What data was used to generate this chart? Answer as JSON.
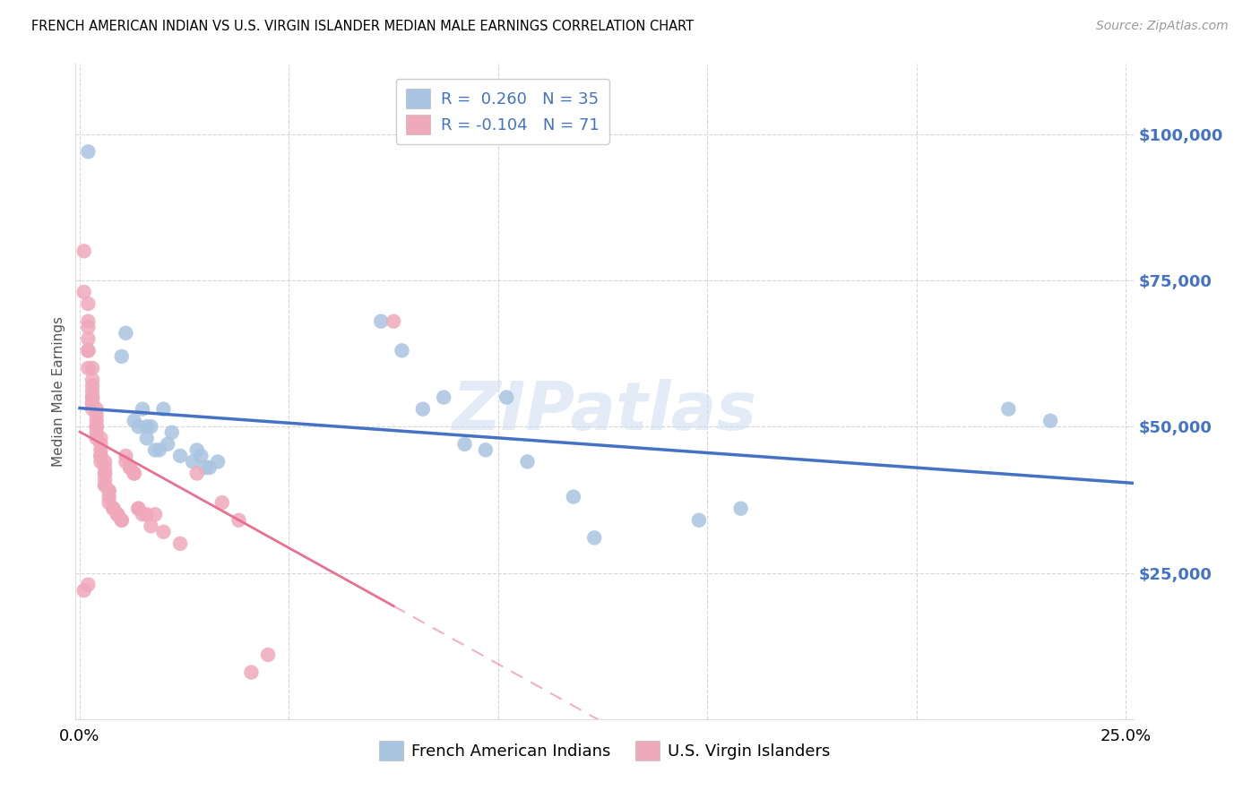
{
  "title": "FRENCH AMERICAN INDIAN VS U.S. VIRGIN ISLANDER MEDIAN MALE EARNINGS CORRELATION CHART",
  "source": "Source: ZipAtlas.com",
  "ylabel": "Median Male Earnings",
  "watermark": "ZIPatlas",
  "xlim": [
    -0.001,
    0.252
  ],
  "ylim": [
    0,
    112000
  ],
  "yticks": [
    25000,
    50000,
    75000,
    100000
  ],
  "xticks": [
    0.0,
    0.05,
    0.1,
    0.15,
    0.2,
    0.25
  ],
  "xtick_labels": [
    "0.0%",
    "",
    "",
    "",
    "",
    "25.0%"
  ],
  "ytick_labels": [
    "$25,000",
    "$50,000",
    "$75,000",
    "$100,000"
  ],
  "blue_dot_color": "#a8c4e0",
  "pink_dot_color": "#f0a8bb",
  "blue_line_color": "#4472c4",
  "pink_line_color": "#e87090",
  "legend_text_color": "#4472c4",
  "blue_scatter_x": [
    0.002,
    0.01,
    0.011,
    0.013,
    0.014,
    0.015,
    0.016,
    0.016,
    0.017,
    0.018,
    0.019,
    0.02,
    0.021,
    0.022,
    0.024,
    0.027,
    0.028,
    0.029,
    0.03,
    0.031,
    0.033,
    0.072,
    0.077,
    0.082,
    0.087,
    0.092,
    0.097,
    0.102,
    0.107,
    0.118,
    0.123,
    0.148,
    0.158,
    0.222,
    0.232
  ],
  "blue_scatter_y": [
    97000,
    62000,
    66000,
    51000,
    50000,
    53000,
    48000,
    50000,
    50000,
    46000,
    46000,
    53000,
    47000,
    49000,
    45000,
    44000,
    46000,
    45000,
    43000,
    43000,
    44000,
    68000,
    63000,
    53000,
    55000,
    47000,
    46000,
    55000,
    44000,
    38000,
    31000,
    34000,
    36000,
    53000,
    51000
  ],
  "pink_scatter_x": [
    0.001,
    0.001,
    0.002,
    0.002,
    0.002,
    0.002,
    0.002,
    0.002,
    0.002,
    0.003,
    0.003,
    0.003,
    0.003,
    0.003,
    0.003,
    0.003,
    0.003,
    0.003,
    0.004,
    0.004,
    0.004,
    0.004,
    0.004,
    0.004,
    0.004,
    0.005,
    0.005,
    0.005,
    0.005,
    0.005,
    0.005,
    0.006,
    0.006,
    0.006,
    0.006,
    0.006,
    0.006,
    0.006,
    0.007,
    0.007,
    0.007,
    0.007,
    0.008,
    0.008,
    0.009,
    0.009,
    0.009,
    0.01,
    0.01,
    0.011,
    0.011,
    0.012,
    0.012,
    0.013,
    0.013,
    0.014,
    0.014,
    0.015,
    0.016,
    0.017,
    0.018,
    0.02,
    0.024,
    0.028,
    0.034,
    0.038,
    0.002,
    0.001,
    0.075,
    0.041,
    0.045
  ],
  "pink_scatter_y": [
    80000,
    73000,
    71000,
    68000,
    67000,
    65000,
    63000,
    63000,
    60000,
    60000,
    58000,
    57000,
    56000,
    55000,
    55000,
    54000,
    54000,
    53000,
    53000,
    52000,
    51000,
    50000,
    50000,
    49000,
    48000,
    48000,
    47000,
    46000,
    45000,
    45000,
    44000,
    44000,
    43000,
    42000,
    42000,
    41000,
    40000,
    40000,
    39000,
    39000,
    38000,
    37000,
    36000,
    36000,
    35000,
    35000,
    35000,
    34000,
    34000,
    45000,
    44000,
    43000,
    43000,
    42000,
    42000,
    36000,
    36000,
    35000,
    35000,
    33000,
    35000,
    32000,
    30000,
    42000,
    37000,
    34000,
    23000,
    22000,
    68000,
    8000,
    11000
  ]
}
